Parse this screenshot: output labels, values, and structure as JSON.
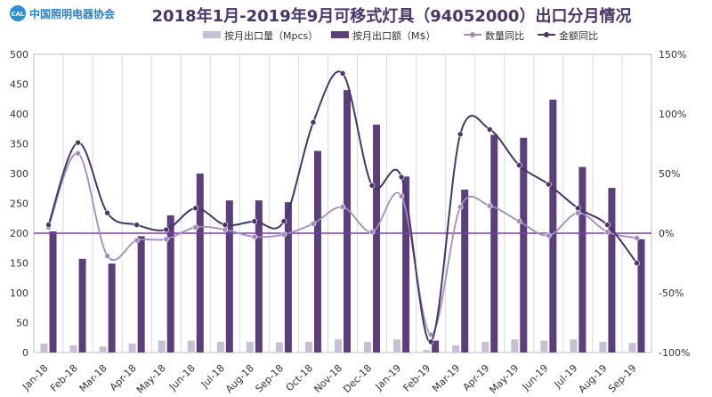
{
  "logo": {
    "abbr": "CAL",
    "name": "中国照明电器协会"
  },
  "chart_data": {
    "type": "bar+line",
    "title": "2018年1月-2019年9月可移式灯具（94052000）出口分月情况",
    "categories": [
      "Jan-18",
      "Feb-18",
      "Mar-18",
      "Apr-18",
      "May-18",
      "Jun-18",
      "Jul-18",
      "Aug-18",
      "Sep-18",
      "Oct-18",
      "Nov-18",
      "Dec-18",
      "Jan-19",
      "Feb-19",
      "Mar-19",
      "Apr-19",
      "May-19",
      "Jun-19",
      "Jul-19",
      "Aug-19",
      "Sep-19"
    ],
    "y_left": {
      "min": 0,
      "max": 500,
      "ticks": [
        "0",
        "50",
        "100",
        "150",
        "200",
        "250",
        "300",
        "350",
        "400",
        "450",
        "500"
      ]
    },
    "y_right": {
      "min": -100,
      "max": 150,
      "ticks": [
        "-100%",
        "-50%",
        "0%",
        "50%",
        "100%",
        "150%"
      ],
      "tick_values": [
        -100,
        -50,
        0,
        50,
        100,
        150
      ]
    },
    "grid": "vertical",
    "legend_position": "top",
    "series": [
      {
        "name": "按月出口量（Mpcs）",
        "kind": "bar",
        "axis": "left",
        "color": "#c7c0d4",
        "values": [
          15,
          12,
          10,
          15,
          20,
          20,
          18,
          18,
          17,
          18,
          22,
          18,
          22,
          4,
          12,
          18,
          22,
          20,
          22,
          18,
          16
        ]
      },
      {
        "name": "按月出口额（M$）",
        "kind": "bar",
        "axis": "left",
        "color": "#5a3f7a",
        "values": [
          203,
          157,
          149,
          195,
          230,
          300,
          255,
          255,
          252,
          338,
          440,
          382,
          295,
          20,
          273,
          365,
          360,
          424,
          311,
          276,
          190
        ]
      },
      {
        "name": "数量同比",
        "kind": "line",
        "axis": "right",
        "color": "#a28bc0",
        "values": [
          5,
          67,
          -19,
          -6,
          -5,
          5,
          3,
          -3,
          -1,
          8,
          22,
          1,
          31,
          -85,
          22,
          23,
          10,
          -2,
          17,
          1,
          -4
        ]
      },
      {
        "name": "金额同比",
        "kind": "line",
        "axis": "right",
        "color": "#4a3468",
        "values": [
          7,
          76,
          17,
          7,
          3,
          21,
          7,
          10,
          10,
          93,
          134,
          40,
          47,
          -91,
          83,
          87,
          57,
          41,
          21,
          7,
          -25
        ]
      }
    ]
  }
}
